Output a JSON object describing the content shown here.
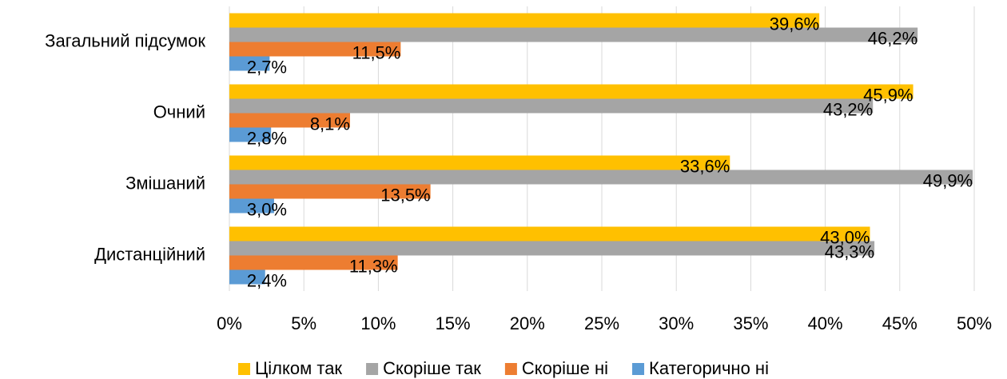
{
  "chart_data": {
    "type": "bar",
    "orientation": "horizontal",
    "categories": [
      "Загальний підсумок",
      "Очний",
      "Змішаний",
      "Дистанційний"
    ],
    "series": [
      {
        "name": "Цілком так",
        "color": "#FFC000",
        "values": [
          39.6,
          45.9,
          33.6,
          43.0
        ],
        "value_labels": [
          "39,6%",
          "45,9%",
          "33,6%",
          "43,0%"
        ]
      },
      {
        "name": "Скоріше так",
        "color": "#A5A5A5",
        "values": [
          46.2,
          43.2,
          49.9,
          43.3
        ],
        "value_labels": [
          "46,2%",
          "43,2%",
          "49,9%",
          "43,3%"
        ]
      },
      {
        "name": "Скоріше ні",
        "color": "#ED7D31",
        "values": [
          11.5,
          8.1,
          13.5,
          11.3
        ],
        "value_labels": [
          "11,5%",
          "8,1%",
          "13,5%",
          "11,3%"
        ]
      },
      {
        "name": "Категорично ні",
        "color": "#5B9BD5",
        "values": [
          2.7,
          2.8,
          3.0,
          2.4
        ],
        "value_labels": [
          "2,7%",
          "2,8%",
          "3,0%",
          "2,4%"
        ]
      }
    ],
    "xlim": [
      0,
      50
    ],
    "xticks": [
      {
        "value": 0,
        "label": "0%"
      },
      {
        "value": 5,
        "label": "5%"
      },
      {
        "value": 10,
        "label": "10%"
      },
      {
        "value": 15,
        "label": "15%"
      },
      {
        "value": 20,
        "label": "20%"
      },
      {
        "value": 25,
        "label": "25%"
      },
      {
        "value": 30,
        "label": "30%"
      },
      {
        "value": 35,
        "label": "35%"
      },
      {
        "value": 40,
        "label": "40%"
      },
      {
        "value": 45,
        "label": "45%"
      },
      {
        "value": 50,
        "label": "50%"
      }
    ],
    "grid": true,
    "legend": "bottom"
  }
}
